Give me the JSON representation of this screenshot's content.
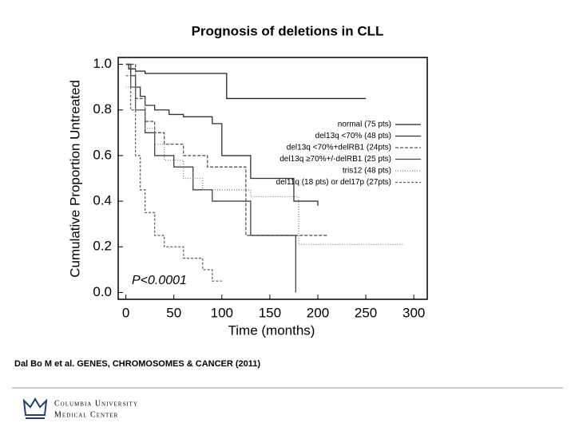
{
  "chart_data": {
    "type": "step",
    "title": "Prognosis of deletions in CLL",
    "xlabel": "Time (months)",
    "ylabel": "Cumulative Proportion Untreated",
    "annotation": "P<0.0001",
    "xlim": [
      -8,
      314
    ],
    "ylim": [
      -0.03,
      1.03
    ],
    "xticks": [
      0,
      50,
      100,
      150,
      200,
      250,
      300
    ],
    "yticks": [
      {
        "value": 0,
        "label": "0.0"
      },
      0.2,
      0.4,
      0.6,
      0.8,
      {
        "value": 1,
        "label": "1.0"
      }
    ],
    "legend": "right",
    "series": [
      {
        "name": "normal (75 pts)",
        "color": "#222222",
        "x": [
          0,
          3,
          10,
          20,
          105,
          250
        ],
        "values": [
          1,
          0.98,
          0.97,
          0.96,
          0.85,
          0.85
        ]
      },
      {
        "name": "del13q <70% (48 pts)",
        "color": "#333333",
        "x": [
          0,
          5,
          10,
          15,
          20,
          30,
          45,
          60,
          90,
          100,
          130,
          175,
          200
        ],
        "values": [
          1,
          0.95,
          0.9,
          0.86,
          0.82,
          0.8,
          0.78,
          0.77,
          0.74,
          0.6,
          0.5,
          0.4,
          0.38
        ]
      },
      {
        "name": "del13q <70%+delRB1 (24pts)",
        "color": "#555555",
        "x": [
          0,
          10,
          20,
          30,
          40,
          60,
          85,
          125,
          210
        ],
        "values": [
          1,
          0.85,
          0.75,
          0.7,
          0.65,
          0.6,
          0.55,
          0.25,
          0.25
        ]
      },
      {
        "name": "del13q ≥70%+/-delRB1 (25 pts)",
        "color": "#444444",
        "x": [
          0,
          5,
          10,
          20,
          30,
          50,
          70,
          90,
          130,
          177
        ],
        "values": [
          1,
          0.9,
          0.8,
          0.7,
          0.6,
          0.55,
          0.45,
          0.4,
          0.25,
          0
        ]
      },
      {
        "name": "tris12 (48 pts)",
        "color": "#888888",
        "x": [
          0,
          10,
          20,
          30,
          40,
          60,
          80,
          130,
          180,
          290
        ],
        "values": [
          0.9,
          0.8,
          0.72,
          0.65,
          0.58,
          0.5,
          0.45,
          0.42,
          0.21,
          0.21
        ]
      },
      {
        "name": "del11q (18 pts) or del17p (27pts)",
        "color": "#666666",
        "x": [
          0,
          5,
          10,
          15,
          20,
          30,
          40,
          60,
          80,
          90,
          100
        ],
        "values": [
          0.95,
          0.8,
          0.6,
          0.45,
          0.35,
          0.25,
          0.2,
          0.15,
          0.1,
          0.05,
          0.05
        ]
      }
    ]
  },
  "footer": {
    "citation": "Dal Bo M et al. GENES, CHROMOSOMES & CANCER (2011)",
    "logo_line1": "Columbia University",
    "logo_line2": "Medical Center"
  }
}
